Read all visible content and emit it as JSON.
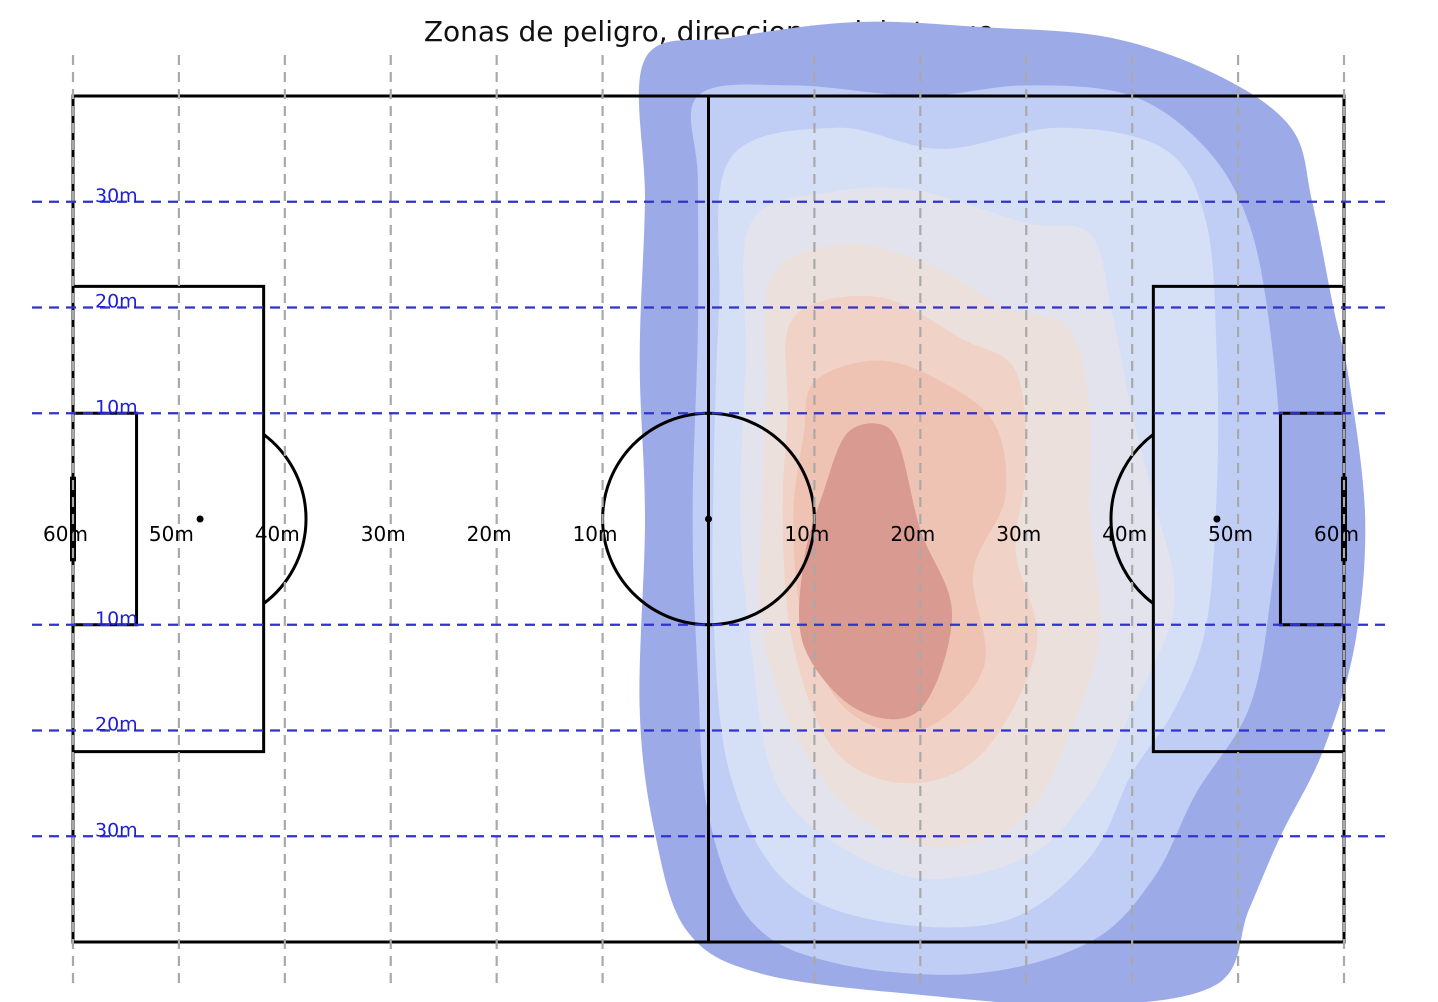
{
  "chart_data": {
    "type": "heatmap",
    "title": "Zonas de peligro, direcciones del ataque",
    "pitch": {
      "length_m": 120,
      "width_m": 80,
      "x_range": [
        -60,
        60
      ],
      "y_range": [
        -40,
        40
      ],
      "penalty_box": {
        "depth_m": 18,
        "half_width_m": 22
      },
      "goal_area": {
        "depth_m": 6,
        "half_width_m": 10
      },
      "center_circle_radius_m": 10,
      "penalty_spot_m": 48,
      "goal_half_width_m": 4
    },
    "x_grid": {
      "positions_m": [
        -60,
        -50,
        -40,
        -30,
        -20,
        -10,
        10,
        20,
        30,
        40,
        50,
        60
      ],
      "labels": [
        "60m",
        "50m",
        "40m",
        "30m",
        "20m",
        "10m",
        "10m",
        "20m",
        "30m",
        "40m",
        "50m",
        "60m"
      ]
    },
    "y_grid": {
      "positions_m": [
        30,
        20,
        10,
        -10,
        -20,
        -30
      ],
      "labels": [
        "30m",
        "20m",
        "10m",
        "10m",
        "20m",
        "30m"
      ]
    },
    "density_levels": [
      {
        "level": 1,
        "color": "#9daae8",
        "contour_m": [
          [
            -6,
            43.5
          ],
          [
            2,
            45.5
          ],
          [
            14,
            47
          ],
          [
            26,
            46.5
          ],
          [
            38,
            45.5
          ],
          [
            48,
            42
          ],
          [
            55,
            37
          ],
          [
            57,
            30
          ],
          [
            59,
            20
          ],
          [
            60.5,
            13
          ],
          [
            62,
            0
          ],
          [
            61,
            -12
          ],
          [
            58,
            -22
          ],
          [
            54,
            -30
          ],
          [
            51,
            -37
          ],
          [
            48,
            -44
          ],
          [
            36,
            -46
          ],
          [
            20,
            -45
          ],
          [
            5,
            -43
          ],
          [
            -2,
            -39
          ],
          [
            -5,
            -30
          ],
          [
            -6.5,
            -18
          ],
          [
            -6,
            0
          ],
          [
            -6.5,
            15
          ],
          [
            -6,
            30
          ]
        ]
      },
      {
        "level": 2,
        "color": "#c0cef5",
        "contour_m": [
          [
            -1,
            40
          ],
          [
            8,
            41
          ],
          [
            20,
            40
          ],
          [
            30,
            41
          ],
          [
            40,
            40
          ],
          [
            47,
            35
          ],
          [
            51,
            28
          ],
          [
            53,
            18
          ],
          [
            54,
            5
          ],
          [
            53,
            -8
          ],
          [
            51,
            -18
          ],
          [
            46,
            -26
          ],
          [
            42,
            -34
          ],
          [
            36,
            -40
          ],
          [
            25,
            -43
          ],
          [
            12,
            -42
          ],
          [
            4,
            -38
          ],
          [
            0,
            -28
          ],
          [
            -1,
            -15
          ],
          [
            -1.5,
            0
          ],
          [
            -1,
            18
          ],
          [
            -1,
            32
          ]
        ]
      },
      {
        "level": 3,
        "color": "#d5dff6",
        "contour_m": [
          [
            2,
            34
          ],
          [
            12,
            37
          ],
          [
            22,
            35
          ],
          [
            33,
            37
          ],
          [
            43,
            35
          ],
          [
            47,
            28
          ],
          [
            48,
            15
          ],
          [
            48,
            3
          ],
          [
            47,
            -10
          ],
          [
            44,
            -18
          ],
          [
            40,
            -24
          ],
          [
            36,
            -32
          ],
          [
            28,
            -38
          ],
          [
            16,
            -38
          ],
          [
            7,
            -34
          ],
          [
            2,
            -24
          ],
          [
            0.5,
            -10
          ],
          [
            0.5,
            5
          ],
          [
            1,
            20
          ]
        ]
      },
      {
        "level": 4,
        "color": "#e2e3ed",
        "contour_m": [
          [
            4,
            28
          ],
          [
            12,
            31
          ],
          [
            20,
            31
          ],
          [
            30,
            28
          ],
          [
            36,
            27
          ],
          [
            38,
            20
          ],
          [
            40,
            10
          ],
          [
            42,
            2
          ],
          [
            44,
            -8
          ],
          [
            40,
            -18
          ],
          [
            36,
            -26
          ],
          [
            30,
            -32
          ],
          [
            20,
            -34
          ],
          [
            11,
            -30
          ],
          [
            6,
            -24
          ],
          [
            4,
            -12
          ],
          [
            3,
            0
          ],
          [
            3.5,
            15
          ]
        ]
      },
      {
        "level": 5,
        "color": "#ebe0dc",
        "contour_m": [
          [
            6,
            23
          ],
          [
            13,
            26
          ],
          [
            21,
            24
          ],
          [
            28,
            20
          ],
          [
            34,
            18
          ],
          [
            36,
            10
          ],
          [
            36,
            0
          ],
          [
            37,
            -10
          ],
          [
            35,
            -18
          ],
          [
            30,
            -28
          ],
          [
            22,
            -31
          ],
          [
            14,
            -28
          ],
          [
            8,
            -20
          ],
          [
            5,
            -10
          ],
          [
            5,
            0
          ],
          [
            5.5,
            12
          ]
        ]
      },
      {
        "level": 6,
        "color": "#f1d2c7",
        "contour_m": [
          [
            8,
            19
          ],
          [
            16,
            21
          ],
          [
            24,
            17
          ],
          [
            29,
            14
          ],
          [
            30,
            5
          ],
          [
            29,
            -3
          ],
          [
            31,
            -12
          ],
          [
            26,
            -22
          ],
          [
            19,
            -25
          ],
          [
            12,
            -22
          ],
          [
            8,
            -12
          ],
          [
            7,
            0
          ],
          [
            7.5,
            10
          ]
        ]
      },
      {
        "level": 7,
        "color": "#efc3b4",
        "contour_m": [
          [
            10,
            13
          ],
          [
            16,
            15
          ],
          [
            22,
            13
          ],
          [
            27,
            9
          ],
          [
            28,
            2
          ],
          [
            25,
            -5
          ],
          [
            26,
            -14
          ],
          [
            20,
            -20
          ],
          [
            13,
            -18
          ],
          [
            9,
            -10
          ],
          [
            8,
            0
          ],
          [
            9,
            8
          ]
        ]
      },
      {
        "level": 8,
        "color": "#d89a91",
        "contour_m": [
          [
            13,
            8
          ],
          [
            16,
            9
          ],
          [
            18,
            7
          ],
          [
            20,
            -1
          ],
          [
            23,
            -9
          ],
          [
            20,
            -18
          ],
          [
            14,
            -18
          ],
          [
            9,
            -12
          ],
          [
            9,
            -4
          ],
          [
            11,
            3
          ]
        ]
      }
    ]
  }
}
